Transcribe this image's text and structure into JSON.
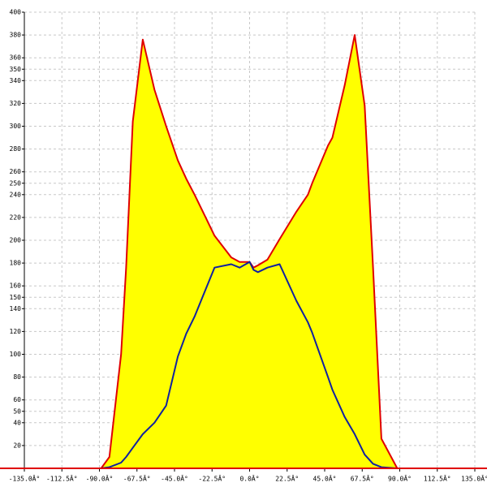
{
  "chart_data": {
    "type": "area-line",
    "x": [
      -89,
      -84,
      -77,
      -74,
      -70,
      -64,
      -57,
      -50,
      -43,
      -38,
      -33,
      -21,
      -11,
      -6,
      0,
      2.4,
      5,
      10.7,
      18,
      28,
      35,
      37.5,
      47,
      49.6,
      57,
      63,
      69,
      74,
      79,
      88.5
    ],
    "series": [
      {
        "color": "#e00000",
        "fill": "#ffff00",
        "values": [
          0,
          10,
          100,
          176,
          304,
          376,
          332,
          300,
          270,
          254,
          240,
          204,
          185,
          181,
          181,
          176,
          178,
          183,
          201,
          225,
          240,
          250,
          283,
          290,
          336,
          380,
          318,
          176,
          26,
          0
        ]
      },
      {
        "color": "#1020a0",
        "values": [
          0,
          1,
          5,
          10,
          18,
          30,
          40,
          55,
          98,
          118,
          133,
          176,
          179,
          176,
          181,
          174,
          172,
          176,
          179,
          147,
          128,
          119,
          80,
          69,
          45,
          30,
          12,
          4,
          1,
          0
        ]
      }
    ],
    "xlim": [
      -135,
      135
    ],
    "xticks": [
      {
        "value": -135,
        "label": "-135.0Â°"
      },
      {
        "value": -112.5,
        "label": "-112.5Â°"
      },
      {
        "value": -90,
        "label": "-90.0Â°"
      },
      {
        "value": -67.5,
        "label": "-67.5Â°"
      },
      {
        "value": -45,
        "label": "-45.0Â°"
      },
      {
        "value": -22.5,
        "label": "-22.5Â°"
      },
      {
        "value": 0,
        "label": "0.0Â°"
      },
      {
        "value": 22.5,
        "label": "22.5Â°"
      },
      {
        "value": 45,
        "label": "45.0Â°"
      },
      {
        "value": 67.5,
        "label": "67.5Â°"
      },
      {
        "value": 90,
        "label": "90.0Â°"
      },
      {
        "value": 112.5,
        "label": "112.5Â°"
      },
      {
        "value": 135,
        "label": "135.0Â°"
      }
    ],
    "ylim": [
      0,
      400
    ],
    "yticks": [
      20,
      40,
      50,
      60,
      80,
      100,
      120,
      140,
      150,
      160,
      180,
      200,
      220,
      240,
      250,
      260,
      280,
      300,
      320,
      340,
      350,
      360,
      380,
      400
    ],
    "grid": true
  }
}
